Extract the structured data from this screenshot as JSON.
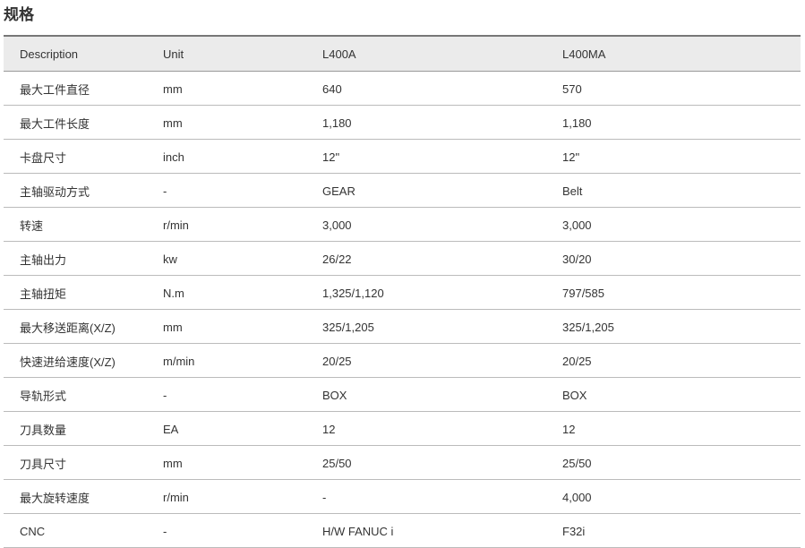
{
  "title": "规格",
  "headers": [
    "Description",
    "Unit",
    "L400A",
    "L400MA"
  ],
  "rows": [
    [
      "最大工件直径",
      "mm",
      "640",
      "570"
    ],
    [
      "最大工件长度",
      "mm",
      "1,180",
      "1,180"
    ],
    [
      "卡盘尺寸",
      "inch",
      "12\"",
      "12\""
    ],
    [
      "主轴驱动方式",
      "-",
      "GEAR",
      "Belt"
    ],
    [
      "转速",
      "r/min",
      "3,000",
      "3,000"
    ],
    [
      "主轴出力",
      "kw",
      "26/22",
      "30/20"
    ],
    [
      "主轴扭矩",
      "N.m",
      "1,325/1,120",
      "797/585"
    ],
    [
      "最大移送距离(X/Z)",
      "mm",
      "325/1,205",
      "325/1,205"
    ],
    [
      "快速进给速度(X/Z)",
      "m/min",
      "20/25",
      "20/25"
    ],
    [
      "导轨形式",
      "-",
      "BOX",
      "BOX"
    ],
    [
      "刀具数量",
      "EA",
      "12",
      "12"
    ],
    [
      "刀具尺寸",
      "mm",
      "25/50",
      "25/50"
    ],
    [
      "最大旋转速度",
      "r/min",
      "-",
      "4,000"
    ],
    [
      "CNC",
      "-",
      "H/W FANUC i",
      "F32i"
    ]
  ]
}
